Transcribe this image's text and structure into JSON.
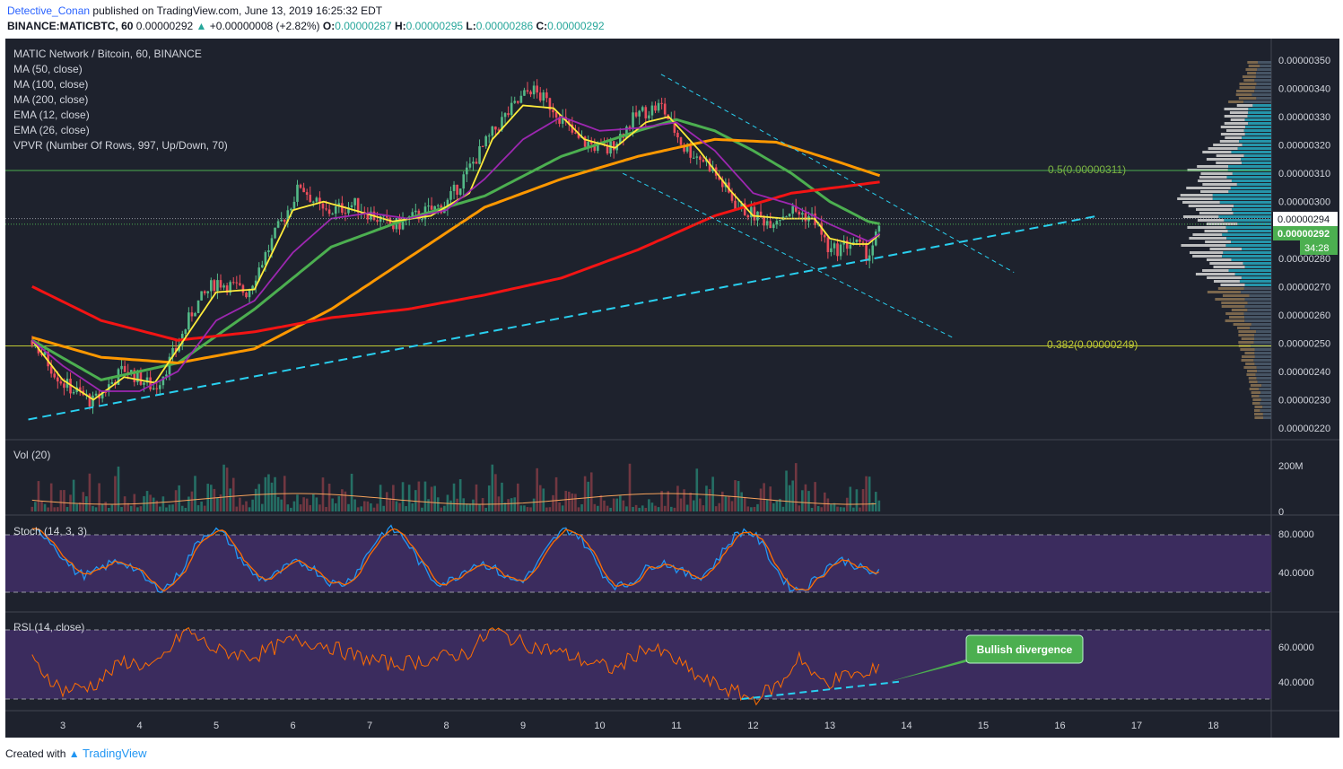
{
  "header": {
    "author": "Detective_Conan",
    "published": "published on TradingView.com, June 13, 2019 16:25:32 EDT",
    "symbol": "BINANCE:MATICBTC, 60",
    "price": "0.00000292",
    "change_arrow": "▲",
    "change": "+0.00000008 (+2.82%)",
    "o_label": "O:",
    "o": "0.00000287",
    "h_label": "H:",
    "h": "0.00000295",
    "l_label": "L:",
    "l": "0.00000286",
    "c_label": "C:",
    "c": "0.00000292"
  },
  "legend": [
    "MATIC Network / Bitcoin, 60, BINANCE",
    "MA (50, close)",
    "MA (100, close)",
    "MA (200, close)",
    "EMA (12, close)",
    "EMA (26, close)",
    "VPVR (Number Of Rows, 997, Up/Down, 70)"
  ],
  "colors": {
    "background": "#1e222d",
    "up_candle": "#53b987",
    "down_candle": "#eb4d5c",
    "ma50": "#4caf50",
    "ma100": "#ff9800",
    "ma200": "#f31414",
    "ema12": "#ffeb3b",
    "ema26": "#9c27b0",
    "trendline": "#29d0f0",
    "fib": "#7cb342",
    "stoch_k": "#2196f3",
    "stoch_d": "#ff6d00",
    "rsi": "#ff6d00",
    "band": "#3b2c5e",
    "callout": "#4caf50"
  },
  "price_axis": {
    "ticks": [
      "0.00000350",
      "0.00000340",
      "0.00000330",
      "0.00000320",
      "0.00000310",
      "0.00000300",
      "0.00000290",
      "0.00000280",
      "0.00000270",
      "0.00000260",
      "0.00000250",
      "0.00000240",
      "0.00000230",
      "0.00000220"
    ],
    "high_label": "0.00000294",
    "last_price_label": "0.00000292",
    "countdown": "34:28"
  },
  "fib_levels": [
    {
      "label": "0.5(0.00000311)",
      "price": 3.11e-06
    },
    {
      "label": "0.382(0.00000249)",
      "price": 2.49e-06
    }
  ],
  "volume_panel": {
    "title": "Vol (20)",
    "ticks": [
      "200M",
      "0"
    ]
  },
  "stoch_panel": {
    "title": "Stoch (14, 3, 3)",
    "ticks": [
      "80.0000",
      "40.0000"
    ]
  },
  "rsi_panel": {
    "title": "RSI (14, close)",
    "ticks": [
      "60.0000",
      "40.0000"
    ]
  },
  "callout": {
    "text": "Bullish divergence"
  },
  "time_axis": [
    "3",
    "4",
    "5",
    "6",
    "7",
    "8",
    "9",
    "10",
    "11",
    "12",
    "13",
    "14",
    "15",
    "16",
    "17",
    "18"
  ],
  "footer": {
    "created_with": "Created with",
    "brand": "TradingView"
  },
  "chart_data": {
    "type": "candlestick",
    "title": "MATIC Network / Bitcoin, 60, BINANCE",
    "x": [
      "3",
      "4",
      "5",
      "6",
      "7",
      "8",
      "9",
      "10",
      "11",
      "12",
      "13",
      "14",
      "15",
      "16",
      "17",
      "18"
    ],
    "ylim": [
      2.18e-06,
      3.52e-06
    ],
    "close_keypoints": [
      {
        "day": 2.6,
        "close": 2.51e-06
      },
      {
        "day": 3.0,
        "close": 2.36e-06
      },
      {
        "day": 3.4,
        "close": 2.29e-06
      },
      {
        "day": 3.8,
        "close": 2.41e-06
      },
      {
        "day": 4.2,
        "close": 2.34e-06
      },
      {
        "day": 4.5,
        "close": 2.49e-06
      },
      {
        "day": 4.7,
        "close": 2.62e-06
      },
      {
        "day": 5.0,
        "close": 2.72e-06
      },
      {
        "day": 5.4,
        "close": 2.68e-06
      },
      {
        "day": 5.8,
        "close": 2.9e-06
      },
      {
        "day": 6.1,
        "close": 3.06e-06
      },
      {
        "day": 6.4,
        "close": 2.96e-06
      },
      {
        "day": 6.8,
        "close": 2.99e-06
      },
      {
        "day": 7.3,
        "close": 2.91e-06
      },
      {
        "day": 7.7,
        "close": 2.96e-06
      },
      {
        "day": 8.0,
        "close": 2.99e-06
      },
      {
        "day": 8.4,
        "close": 3.16e-06
      },
      {
        "day": 8.7,
        "close": 3.28e-06
      },
      {
        "day": 9.1,
        "close": 3.4e-06
      },
      {
        "day": 9.4,
        "close": 3.33e-06
      },
      {
        "day": 9.7,
        "close": 3.22e-06
      },
      {
        "day": 10.1,
        "close": 3.18e-06
      },
      {
        "day": 10.5,
        "close": 3.31e-06
      },
      {
        "day": 10.8,
        "close": 3.34e-06
      },
      {
        "day": 11.1,
        "close": 3.19e-06
      },
      {
        "day": 11.4,
        "close": 3.14e-06
      },
      {
        "day": 11.8,
        "close": 2.98e-06
      },
      {
        "day": 12.2,
        "close": 2.93e-06
      },
      {
        "day": 12.5,
        "close": 2.97e-06
      },
      {
        "day": 12.8,
        "close": 2.94e-06
      },
      {
        "day": 13.0,
        "close": 2.82e-06
      },
      {
        "day": 13.3,
        "close": 2.86e-06
      },
      {
        "day": 13.5,
        "close": 2.81e-06
      },
      {
        "day": 13.67,
        "close": 2.92e-06
      }
    ],
    "series": [
      {
        "name": "MA (50, close)",
        "values": [
          [
            2.6,
            2.51e-06
          ],
          [
            3.5,
            2.37e-06
          ],
          [
            4.5,
            2.43e-06
          ],
          [
            5.5,
            2.62e-06
          ],
          [
            6.5,
            2.84e-06
          ],
          [
            7.5,
            2.94e-06
          ],
          [
            8.5,
            3.02e-06
          ],
          [
            9.5,
            3.16e-06
          ],
          [
            10.5,
            3.25e-06
          ],
          [
            11.0,
            3.29e-06
          ],
          [
            11.5,
            3.25e-06
          ],
          [
            12.0,
            3.18e-06
          ],
          [
            12.5,
            3.1e-06
          ],
          [
            13.0,
            3e-06
          ],
          [
            13.5,
            2.93e-06
          ],
          [
            13.67,
            2.92e-06
          ]
        ]
      },
      {
        "name": "MA (100, close)",
        "values": [
          [
            2.6,
            2.52e-06
          ],
          [
            3.5,
            2.45e-06
          ],
          [
            4.5,
            2.43e-06
          ],
          [
            5.5,
            2.48e-06
          ],
          [
            6.5,
            2.62e-06
          ],
          [
            7.5,
            2.8e-06
          ],
          [
            8.5,
            2.98e-06
          ],
          [
            9.5,
            3.08e-06
          ],
          [
            10.5,
            3.16e-06
          ],
          [
            11.5,
            3.22e-06
          ],
          [
            12.3,
            3.21e-06
          ],
          [
            13.0,
            3.15e-06
          ],
          [
            13.67,
            3.09e-06
          ]
        ]
      },
      {
        "name": "MA (200, close)",
        "values": [
          [
            2.6,
            2.7e-06
          ],
          [
            3.5,
            2.58e-06
          ],
          [
            4.5,
            2.51e-06
          ],
          [
            5.5,
            2.54e-06
          ],
          [
            6.5,
            2.59e-06
          ],
          [
            7.5,
            2.62e-06
          ],
          [
            8.5,
            2.67e-06
          ],
          [
            9.5,
            2.73e-06
          ],
          [
            10.5,
            2.83e-06
          ],
          [
            11.5,
            2.95e-06
          ],
          [
            12.5,
            3.03e-06
          ],
          [
            13.67,
            3.07e-06
          ]
        ]
      },
      {
        "name": "EMA (12, close)",
        "values": [
          [
            2.6,
            2.51e-06
          ],
          [
            3.0,
            2.37e-06
          ],
          [
            3.4,
            2.3e-06
          ],
          [
            3.8,
            2.38e-06
          ],
          [
            4.2,
            2.36e-06
          ],
          [
            4.6,
            2.52e-06
          ],
          [
            5.0,
            2.68e-06
          ],
          [
            5.5,
            2.69e-06
          ],
          [
            6.0,
            2.97e-06
          ],
          [
            6.4,
            3e-06
          ],
          [
            6.8,
            2.97e-06
          ],
          [
            7.3,
            2.93e-06
          ],
          [
            7.8,
            2.95e-06
          ],
          [
            8.3,
            3.03e-06
          ],
          [
            8.6,
            3.22e-06
          ],
          [
            9.0,
            3.34e-06
          ],
          [
            9.4,
            3.33e-06
          ],
          [
            9.8,
            3.22e-06
          ],
          [
            10.2,
            3.19e-06
          ],
          [
            10.6,
            3.28e-06
          ],
          [
            10.9,
            3.3e-06
          ],
          [
            11.3,
            3.18e-06
          ],
          [
            11.7,
            3.04e-06
          ],
          [
            12.0,
            2.95e-06
          ],
          [
            12.4,
            2.94e-06
          ],
          [
            12.8,
            2.94e-06
          ],
          [
            13.0,
            2.87e-06
          ],
          [
            13.3,
            2.85e-06
          ],
          [
            13.5,
            2.85e-06
          ],
          [
            13.67,
            2.89e-06
          ]
        ]
      },
      {
        "name": "EMA (26, close)",
        "values": [
          [
            2.6,
            2.51e-06
          ],
          [
            3.0,
            2.42e-06
          ],
          [
            3.5,
            2.33e-06
          ],
          [
            4.0,
            2.33e-06
          ],
          [
            4.5,
            2.4e-06
          ],
          [
            5.0,
            2.58e-06
          ],
          [
            5.5,
            2.65e-06
          ],
          [
            6.0,
            2.82e-06
          ],
          [
            6.5,
            2.94e-06
          ],
          [
            7.0,
            2.96e-06
          ],
          [
            7.5,
            2.94e-06
          ],
          [
            8.0,
            2.97e-06
          ],
          [
            8.5,
            3.08e-06
          ],
          [
            9.0,
            3.22e-06
          ],
          [
            9.5,
            3.3e-06
          ],
          [
            10.0,
            3.25e-06
          ],
          [
            10.5,
            3.26e-06
          ],
          [
            11.0,
            3.28e-06
          ],
          [
            11.5,
            3.18e-06
          ],
          [
            12.0,
            3.03e-06
          ],
          [
            12.5,
            2.99e-06
          ],
          [
            13.0,
            2.92e-06
          ],
          [
            13.5,
            2.86e-06
          ],
          [
            13.67,
            2.89e-06
          ]
        ]
      }
    ],
    "trendlines": [
      {
        "name": "rising support",
        "from": [
          2.55,
          2.23e-06
        ],
        "to": [
          16.5,
          2.95e-06
        ]
      },
      {
        "name": "channel upper",
        "from": [
          10.8,
          3.45e-06
        ],
        "to": [
          15.4,
          2.75e-06
        ]
      },
      {
        "name": "channel lower",
        "from": [
          10.3,
          3.1e-06
        ],
        "to": [
          14.6,
          2.52e-06
        ]
      }
    ],
    "stochastic": {
      "upper_band": 80,
      "lower_band": 20
    },
    "rsi": {
      "upper_band": 70,
      "lower_band": 30,
      "keypoints": [
        [
          2.6,
          52
        ],
        [
          3.0,
          35
        ],
        [
          3.4,
          38
        ],
        [
          3.8,
          52
        ],
        [
          4.2,
          48
        ],
        [
          4.6,
          70
        ],
        [
          5.0,
          58
        ],
        [
          5.5,
          55
        ],
        [
          6.0,
          64
        ],
        [
          6.4,
          62
        ],
        [
          6.8,
          55
        ],
        [
          7.3,
          50
        ],
        [
          7.8,
          53
        ],
        [
          8.3,
          57
        ],
        [
          8.6,
          70
        ],
        [
          9.0,
          62
        ],
        [
          9.4,
          58
        ],
        [
          9.8,
          52
        ],
        [
          10.2,
          47
        ],
        [
          10.6,
          60
        ],
        [
          10.9,
          55
        ],
        [
          11.3,
          42
        ],
        [
          11.7,
          35
        ],
        [
          12.0,
          30
        ],
        [
          12.4,
          40
        ],
        [
          12.6,
          56
        ],
        [
          12.8,
          42
        ],
        [
          13.0,
          40
        ],
        [
          13.3,
          45
        ],
        [
          13.5,
          42
        ],
        [
          13.67,
          54
        ]
      ],
      "divergence_line": [
        [
          11.85,
          30
        ],
        [
          13.6,
          38
        ]
      ]
    }
  }
}
